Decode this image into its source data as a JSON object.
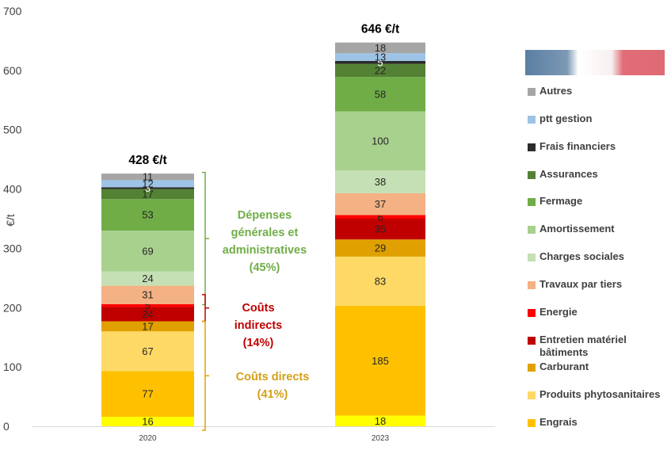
{
  "colors": {
    "Autres": "#a5a5a5",
    "ptt gestion": "#9dc3e6",
    "Frais financiers": "#2b2b2b",
    "Assurances": "#548235",
    "Fermage": "#70ad47",
    "Amortissement": "#a9d18e",
    "Charges sociales": "#c5e0b4",
    "Travaux par tiers": "#f4b183",
    "Energie": "#ff0000",
    "Entretien matériel bâtiments": "#c00000",
    "Carburant": "#e0a100",
    "Produits phytosanitaires": "#ffd966",
    "Engrais": "#ffc000",
    "Engrais_2020_bottom": "#ffff00"
  },
  "chart_data": {
    "type": "bar",
    "stacked": true,
    "categories": [
      "2020",
      "2023"
    ],
    "ylabel": "€/t",
    "ylim": [
      0,
      700
    ],
    "yticks": [
      0,
      100,
      200,
      300,
      400,
      500,
      600,
      700
    ],
    "totals": [
      "428 €/t",
      "646 €/t"
    ],
    "series": [
      {
        "name": "Engrais (jaune)",
        "values": [
          16,
          18
        ]
      },
      {
        "name": "Engrais",
        "values": [
          77,
          185
        ]
      },
      {
        "name": "Produits phytosanitaires",
        "values": [
          67,
          83
        ]
      },
      {
        "name": "Carburant",
        "values": [
          17,
          29
        ]
      },
      {
        "name": "Entretien matériel bâtiments",
        "values": [
          24,
          35
        ]
      },
      {
        "name": "Energie",
        "values": [
          5,
          6
        ]
      },
      {
        "name": "Travaux par tiers",
        "values": [
          31,
          37
        ]
      },
      {
        "name": "Charges sociales",
        "values": [
          24,
          38
        ]
      },
      {
        "name": "Amortissement",
        "values": [
          69,
          100
        ]
      },
      {
        "name": "Fermage",
        "values": [
          53,
          58
        ]
      },
      {
        "name": "Assurances",
        "values": [
          17,
          22
        ]
      },
      {
        "name": "Frais financiers",
        "values": [
          3,
          5
        ]
      },
      {
        "name": "ptt gestion",
        "values": [
          12,
          13
        ]
      },
      {
        "name": "Autres",
        "values": [
          11,
          18
        ]
      }
    ],
    "groups": [
      {
        "label": [
          "Dépenses",
          "générales et",
          "administratives",
          "(45%)"
        ],
        "color": "#70ad47",
        "range": [
          205,
          428
        ]
      },
      {
        "label": [
          "Coûts",
          "indirects",
          "(14%)"
        ],
        "color": "#c00000",
        "range": [
          177,
          222
        ]
      },
      {
        "label": [
          "Coûts directs",
          "(41%)"
        ],
        "color": "#e0a100",
        "range": [
          0,
          177
        ]
      }
    ]
  },
  "legend": [
    "Autres",
    "ptt gestion",
    "Frais financiers",
    "Assurances",
    "Fermage",
    "Amortissement",
    "Charges sociales",
    "Travaux par tiers",
    "Energie",
    "Entretien matériel bâtiments",
    "Carburant",
    "Produits phytosanitaires",
    "Engrais"
  ]
}
